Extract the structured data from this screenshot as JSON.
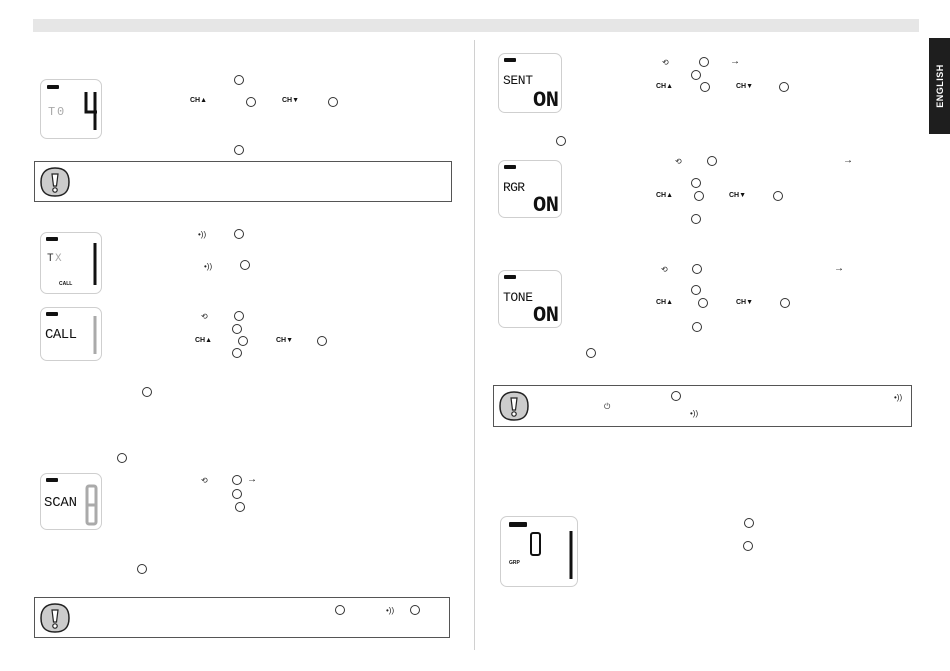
{
  "language_tab": "ENGLISH",
  "displays": {
    "to": {
      "text": "T0",
      "digit": "4"
    },
    "tx": {
      "text": "TX",
      "digit": "1",
      "sub": "CALL"
    },
    "call": {
      "text": "CALL",
      "digit": "1"
    },
    "scan": {
      "text": "SCAN",
      "digit": "8"
    },
    "sent": {
      "text": "SENT",
      "digit": "ON"
    },
    "rgr": {
      "text": "RGR",
      "digit": "ON"
    },
    "tone": {
      "text": "TONE",
      "digit": "ON"
    },
    "grp": {
      "text": "0",
      "digit": "1",
      "sub": "GRP"
    }
  },
  "labels": {
    "ch_up": "CH▲",
    "ch_down": "CH▼"
  },
  "icons": {
    "warning": "exclamation-warning-icon",
    "menu": "menu-key-icon",
    "monitor": "monitor-key-icon",
    "power": "power-icon",
    "arrow": "right-arrow-icon"
  }
}
